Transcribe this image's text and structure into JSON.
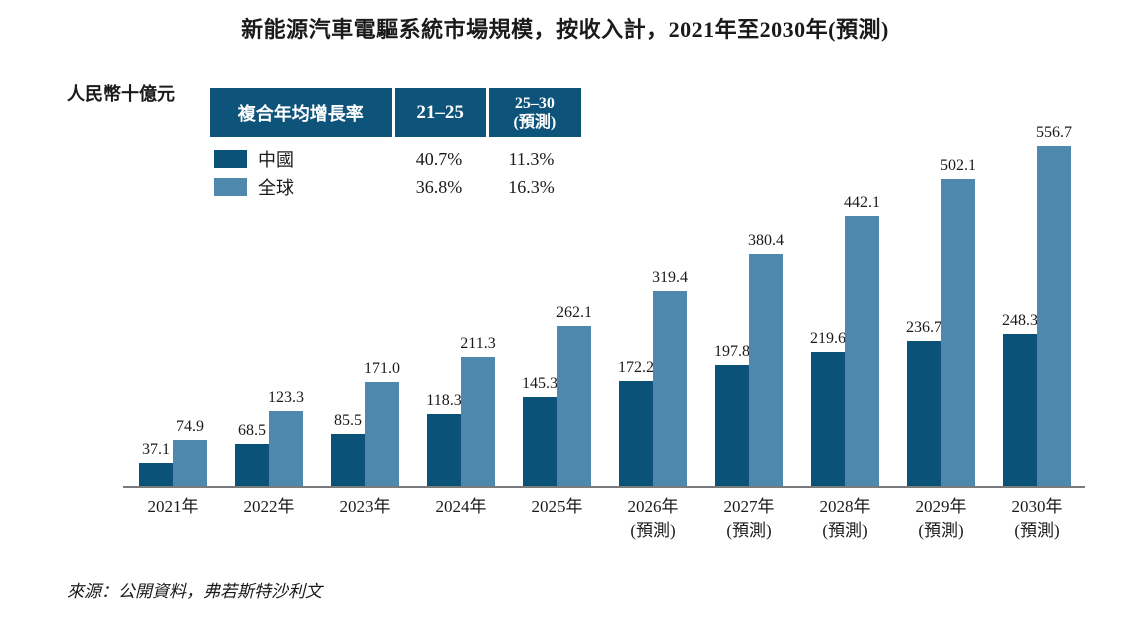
{
  "title": "新能源汽車電驅系統市場規模，按收入計，2021年至2030年(預測)",
  "y_axis_unit": "人民幣十億元",
  "colors": {
    "china": "#0B5278",
    "global": "#4F88AD",
    "table_header_bg": "#0E537A",
    "axis_line": "#7A7A7A"
  },
  "legend_table": {
    "header": {
      "col1": "複合年均增長率",
      "col2": "21–25",
      "col3": "25–30\n(預測)"
    },
    "rows": [
      {
        "label": "中國",
        "color": "#0B5278",
        "cagr_21_25": "40.7%",
        "cagr_25_30": "11.3%"
      },
      {
        "label": "全球",
        "color": "#4F88AD",
        "cagr_21_25": "36.8%",
        "cagr_25_30": "16.3%"
      }
    ]
  },
  "source": "來源：公開資料，弗若斯特沙利文",
  "chart_data": {
    "type": "bar",
    "title": "新能源汽車電驅系統市場規模，按收入計，2021年至2030年(預測)",
    "ylabel": "人民幣十億元",
    "xlabel": "",
    "ylim": [
      0,
      565
    ],
    "grid": false,
    "legend_position": "top-left",
    "categories": [
      "2021年",
      "2022年",
      "2023年",
      "2024年",
      "2025年",
      "2026年\n(預測)",
      "2027年\n(預測)",
      "2028年\n(預測)",
      "2029年\n(預測)",
      "2030年\n(預測)"
    ],
    "series": [
      {
        "name": "中國",
        "color": "#0B5278",
        "values": [
          37.1,
          68.5,
          85.5,
          118.3,
          145.3,
          172.2,
          197.8,
          219.6,
          236.7,
          248.3
        ]
      },
      {
        "name": "全球",
        "color": "#4F88AD",
        "values": [
          74.9,
          123.3,
          171.0,
          211.3,
          262.1,
          319.4,
          380.4,
          442.1,
          502.1,
          556.7
        ]
      }
    ]
  }
}
